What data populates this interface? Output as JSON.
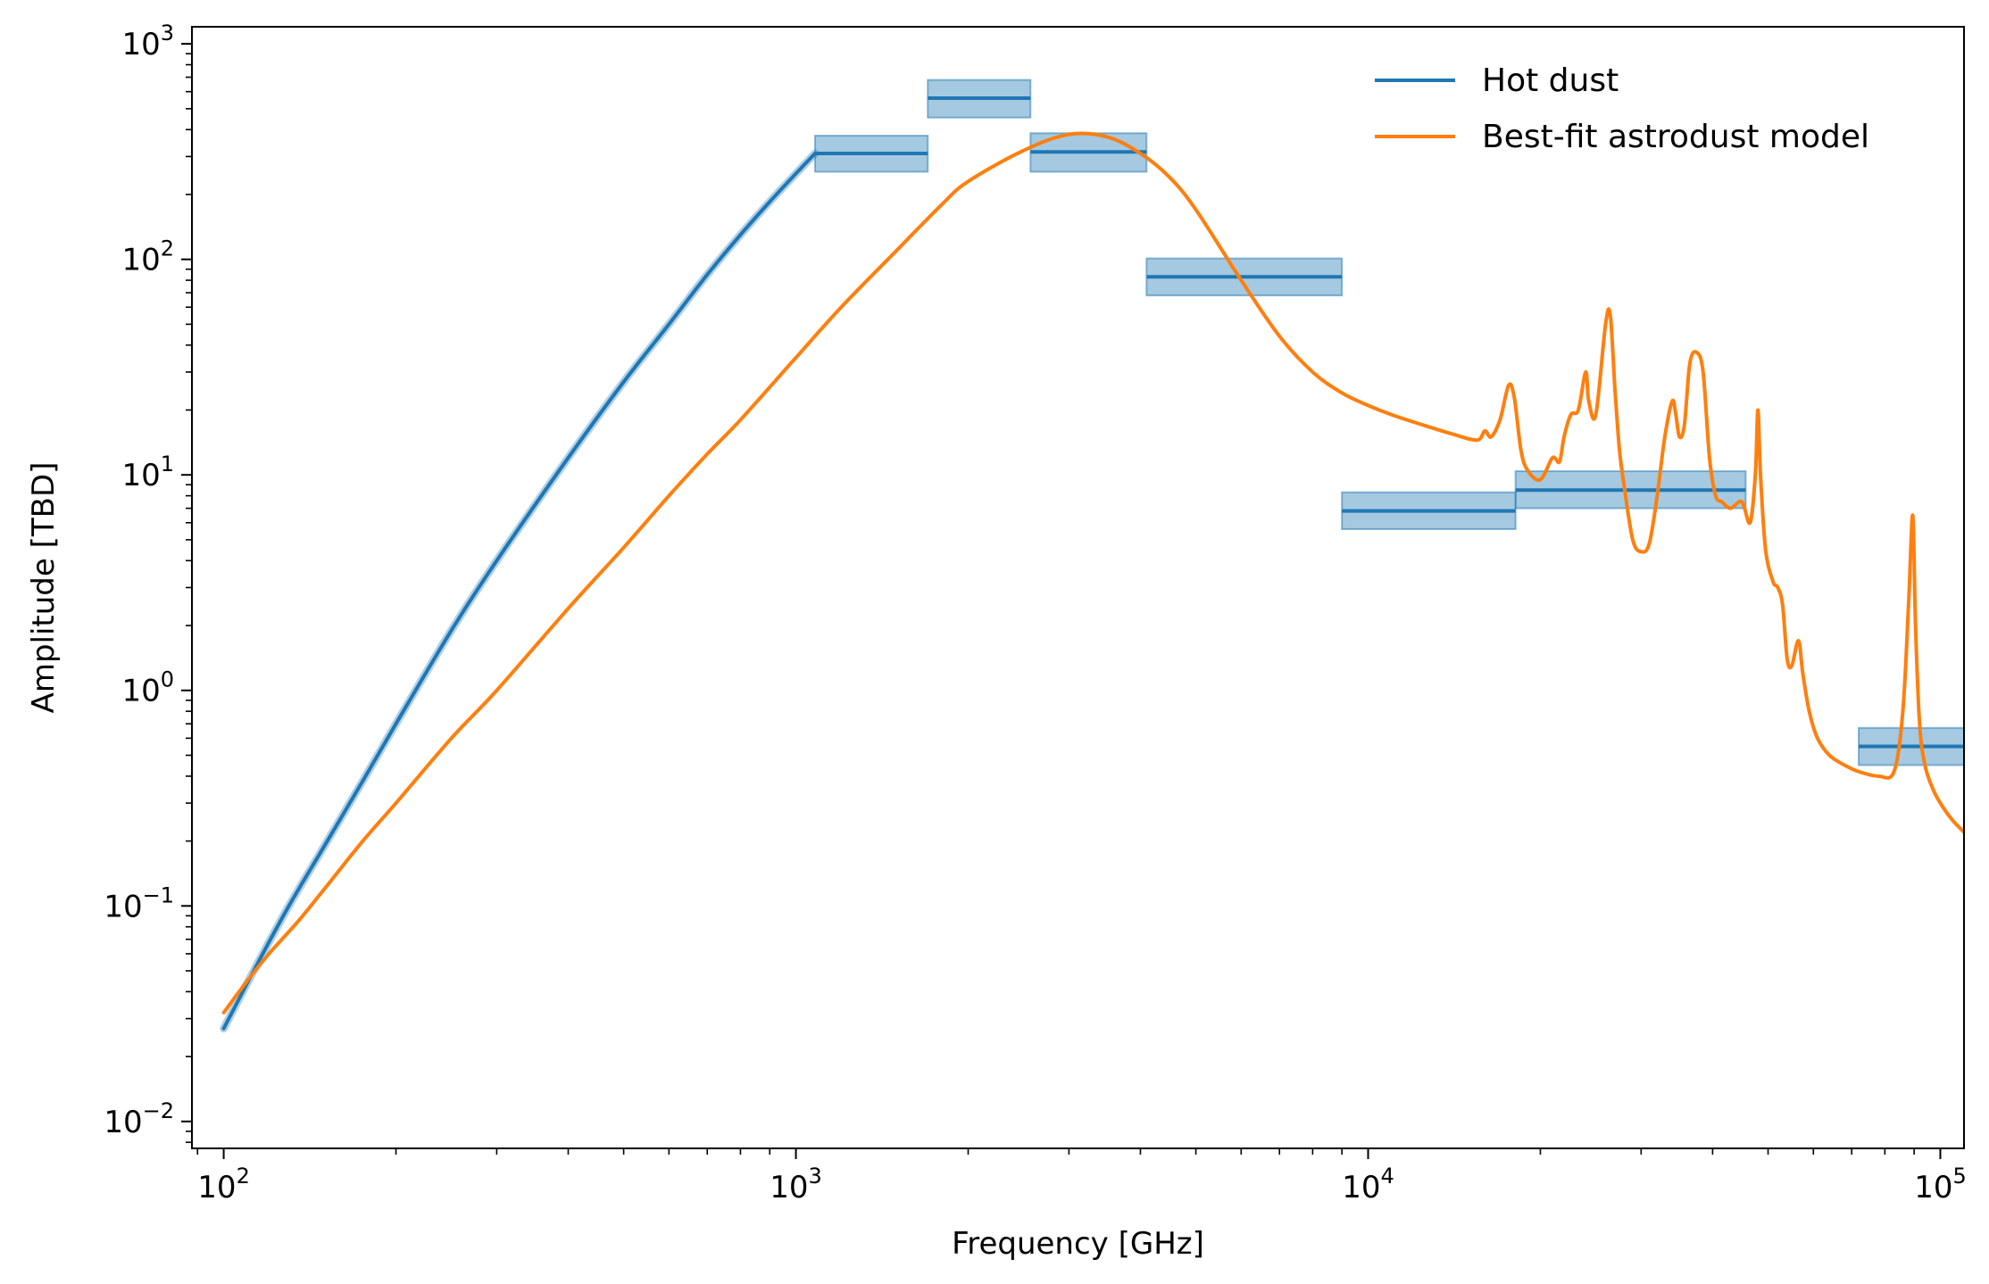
{
  "chart_data": {
    "type": "line",
    "title": "",
    "xlabel": "Frequency [GHz]",
    "ylabel": "Amplitude [TBD]",
    "x_scale": "log",
    "y_scale": "log",
    "xlim": [
      88,
      110000
    ],
    "ylim": [
      0.0075,
      1200
    ],
    "x_ticks": [
      {
        "value": 100,
        "base": "10",
        "exp": "2"
      },
      {
        "value": 1000,
        "base": "10",
        "exp": "3"
      },
      {
        "value": 10000,
        "base": "10",
        "exp": "4"
      },
      {
        "value": 100000,
        "base": "10",
        "exp": "5"
      }
    ],
    "y_ticks": [
      {
        "value": 0.01,
        "base": "10",
        "exp": "−2"
      },
      {
        "value": 0.1,
        "base": "10",
        "exp": "−1"
      },
      {
        "value": 1,
        "base": "10",
        "exp": "0"
      },
      {
        "value": 10,
        "base": "10",
        "exp": "1"
      },
      {
        "value": 100,
        "base": "10",
        "exp": "2"
      },
      {
        "value": 1000,
        "base": "10",
        "exp": "3"
      }
    ],
    "grid": false,
    "legend_position": "top-right",
    "series": [
      {
        "name": "Hot dust",
        "color": "#1f77b4",
        "x": [
          100,
          115,
          130,
          150,
          175,
          200,
          250,
          300,
          400,
          500,
          600,
          700,
          800,
          900,
          1000,
          1080
        ],
        "y": [
          0.027,
          0.055,
          0.1,
          0.19,
          0.38,
          0.7,
          1.9,
          4.0,
          12,
          27,
          50,
          85,
          130,
          185,
          250,
          310
        ]
      },
      {
        "name": "Best-fit astrodust model",
        "color": "#ff7f0e",
        "x": [
          100,
          110,
          120,
          135,
          150,
          175,
          200,
          250,
          300,
          400,
          500,
          600,
          700,
          800,
          1000,
          1200,
          1500,
          1800,
          2000,
          2500,
          3000,
          3500,
          4000,
          4500,
          5000,
          6000,
          7000,
          8000,
          9000,
          10000,
          11000,
          12500,
          14000,
          15500,
          16000,
          16400,
          17000,
          17600,
          18000,
          18500,
          19000,
          20000,
          21000,
          21600,
          22000,
          22600,
          23300,
          24000,
          24300,
          25000,
          26000,
          26500,
          27000,
          27500,
          28000,
          29000,
          30000,
          31000,
          32000,
          33000,
          34000,
          34500,
          35000,
          35700,
          36500,
          37500,
          38500,
          39500,
          40500,
          41500,
          43000,
          45000,
          46500,
          47500,
          48000,
          48500,
          49500,
          51000,
          52000,
          53000,
          54000,
          55000,
          56500,
          57500,
          59000,
          61000,
          64000,
          68000,
          72000,
          78000,
          83000,
          86000,
          88000,
          89500,
          90500,
          92000,
          94000,
          97000,
          100000,
          105000,
          110000
        ],
        "y": [
          0.032,
          0.045,
          0.06,
          0.085,
          0.12,
          0.2,
          0.3,
          0.6,
          1.0,
          2.4,
          4.6,
          8,
          12.5,
          18,
          35,
          60,
          110,
          180,
          230,
          320,
          380,
          370,
          310,
          240,
          170,
          80,
          44,
          30,
          24,
          21,
          19,
          17,
          15.5,
          14.5,
          16,
          15,
          18,
          26,
          23,
          13,
          10.5,
          9.5,
          12,
          11.5,
          15,
          19,
          20,
          30,
          22,
          19,
          50,
          55,
          25,
          13,
          9,
          5,
          4.4,
          4.8,
          8,
          15,
          22,
          19,
          15,
          17,
          33,
          37,
          30,
          12,
          8,
          7.5,
          7,
          7.5,
          6,
          10,
          20,
          10,
          4.5,
          3.2,
          3,
          2.5,
          1.4,
          1.3,
          1.7,
          1.2,
          0.8,
          0.6,
          0.5,
          0.45,
          0.42,
          0.4,
          0.42,
          0.8,
          2.5,
          6.5,
          2.0,
          0.7,
          0.45,
          0.35,
          0.3,
          0.25,
          0.22
        ]
      }
    ],
    "bands": [
      {
        "x0": 1080,
        "x1": 1700,
        "y": 310,
        "y_low": 255,
        "y_high": 375
      },
      {
        "x0": 1700,
        "x1": 2570,
        "y": 560,
        "y_low": 455,
        "y_high": 680
      },
      {
        "x0": 2570,
        "x1": 4100,
        "y": 315,
        "y_low": 255,
        "y_high": 385
      },
      {
        "x0": 4100,
        "x1": 9000,
        "y": 83,
        "y_low": 68,
        "y_high": 101
      },
      {
        "x0": 9000,
        "x1": 18100,
        "y": 6.8,
        "y_low": 5.6,
        "y_high": 8.3
      },
      {
        "x0": 18100,
        "x1": 45700,
        "y": 8.5,
        "y_low": 7.0,
        "y_high": 10.4
      },
      {
        "x0": 72000,
        "x1": 110000,
        "y": 0.55,
        "y_low": 0.45,
        "y_high": 0.67
      }
    ],
    "band_color": "#1f77b4"
  }
}
